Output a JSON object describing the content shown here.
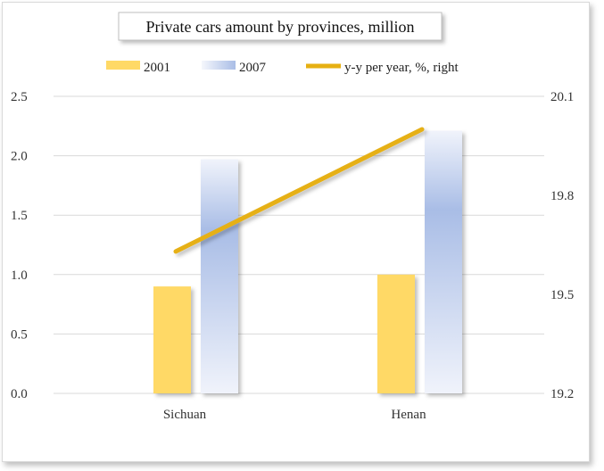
{
  "chart_data": {
    "type": "bar",
    "title": "Private cars amount by provinces, million",
    "categories": [
      "Sichuan",
      "Henan"
    ],
    "series": [
      {
        "name": "2001",
        "type": "bar",
        "axis": "left",
        "values": [
          0.9,
          1.0
        ],
        "color": "#ffd966"
      },
      {
        "name": "2007",
        "type": "bar",
        "axis": "left",
        "values": [
          1.97,
          2.21
        ],
        "color": "#a9bde6"
      },
      {
        "name": "y-y per year, %, right",
        "type": "line",
        "axis": "right",
        "values": [
          19.63,
          20.0
        ],
        "color": "#e6b012"
      }
    ],
    "y_left": {
      "min": 0,
      "max": 2.5,
      "ticks": [
        "0.0",
        "0.5",
        "1.0",
        "1.5",
        "2.0",
        "2.5"
      ]
    },
    "y_right": {
      "min": 19.2,
      "max": 20.1,
      "ticks": [
        "19.2",
        "19.5",
        "19.8",
        "20.1"
      ]
    },
    "grid": true,
    "legend_position": "top"
  }
}
